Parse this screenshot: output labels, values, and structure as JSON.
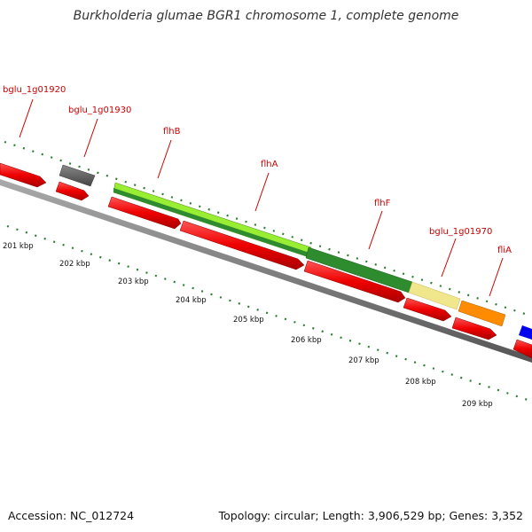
{
  "title": "Burkholderia glumae BGR1 chromosome 1, complete genome",
  "footer": {
    "accession": "Accession: NC_012724",
    "summary": "Topology: circular; Length: 3,906,529 bp; Genes: 3,352"
  },
  "colors": {
    "label": "#cc0000",
    "cds": "#ee0000",
    "axis": "#808080",
    "gc_dots": "#2e7d32",
    "flhB": "#99ee33",
    "flhA": "#2e8b2e",
    "flhF": "#f0e68c",
    "bglu_1g01970": "#ff8c00",
    "fliA": "#0000ee",
    "bglu_1g01930": "#666666"
  },
  "gene_labels": [
    "bglu_1g01920",
    "bglu_1g01930",
    "flhB",
    "flhA",
    "flhF",
    "bglu_1g01970",
    "fliA"
  ],
  "axis_ticks": [
    "201 kbp",
    "202 kbp",
    "203 kbp",
    "204 kbp",
    "205 kbp",
    "206 kbp",
    "207 kbp",
    "208 kbp",
    "209 kbp"
  ]
}
